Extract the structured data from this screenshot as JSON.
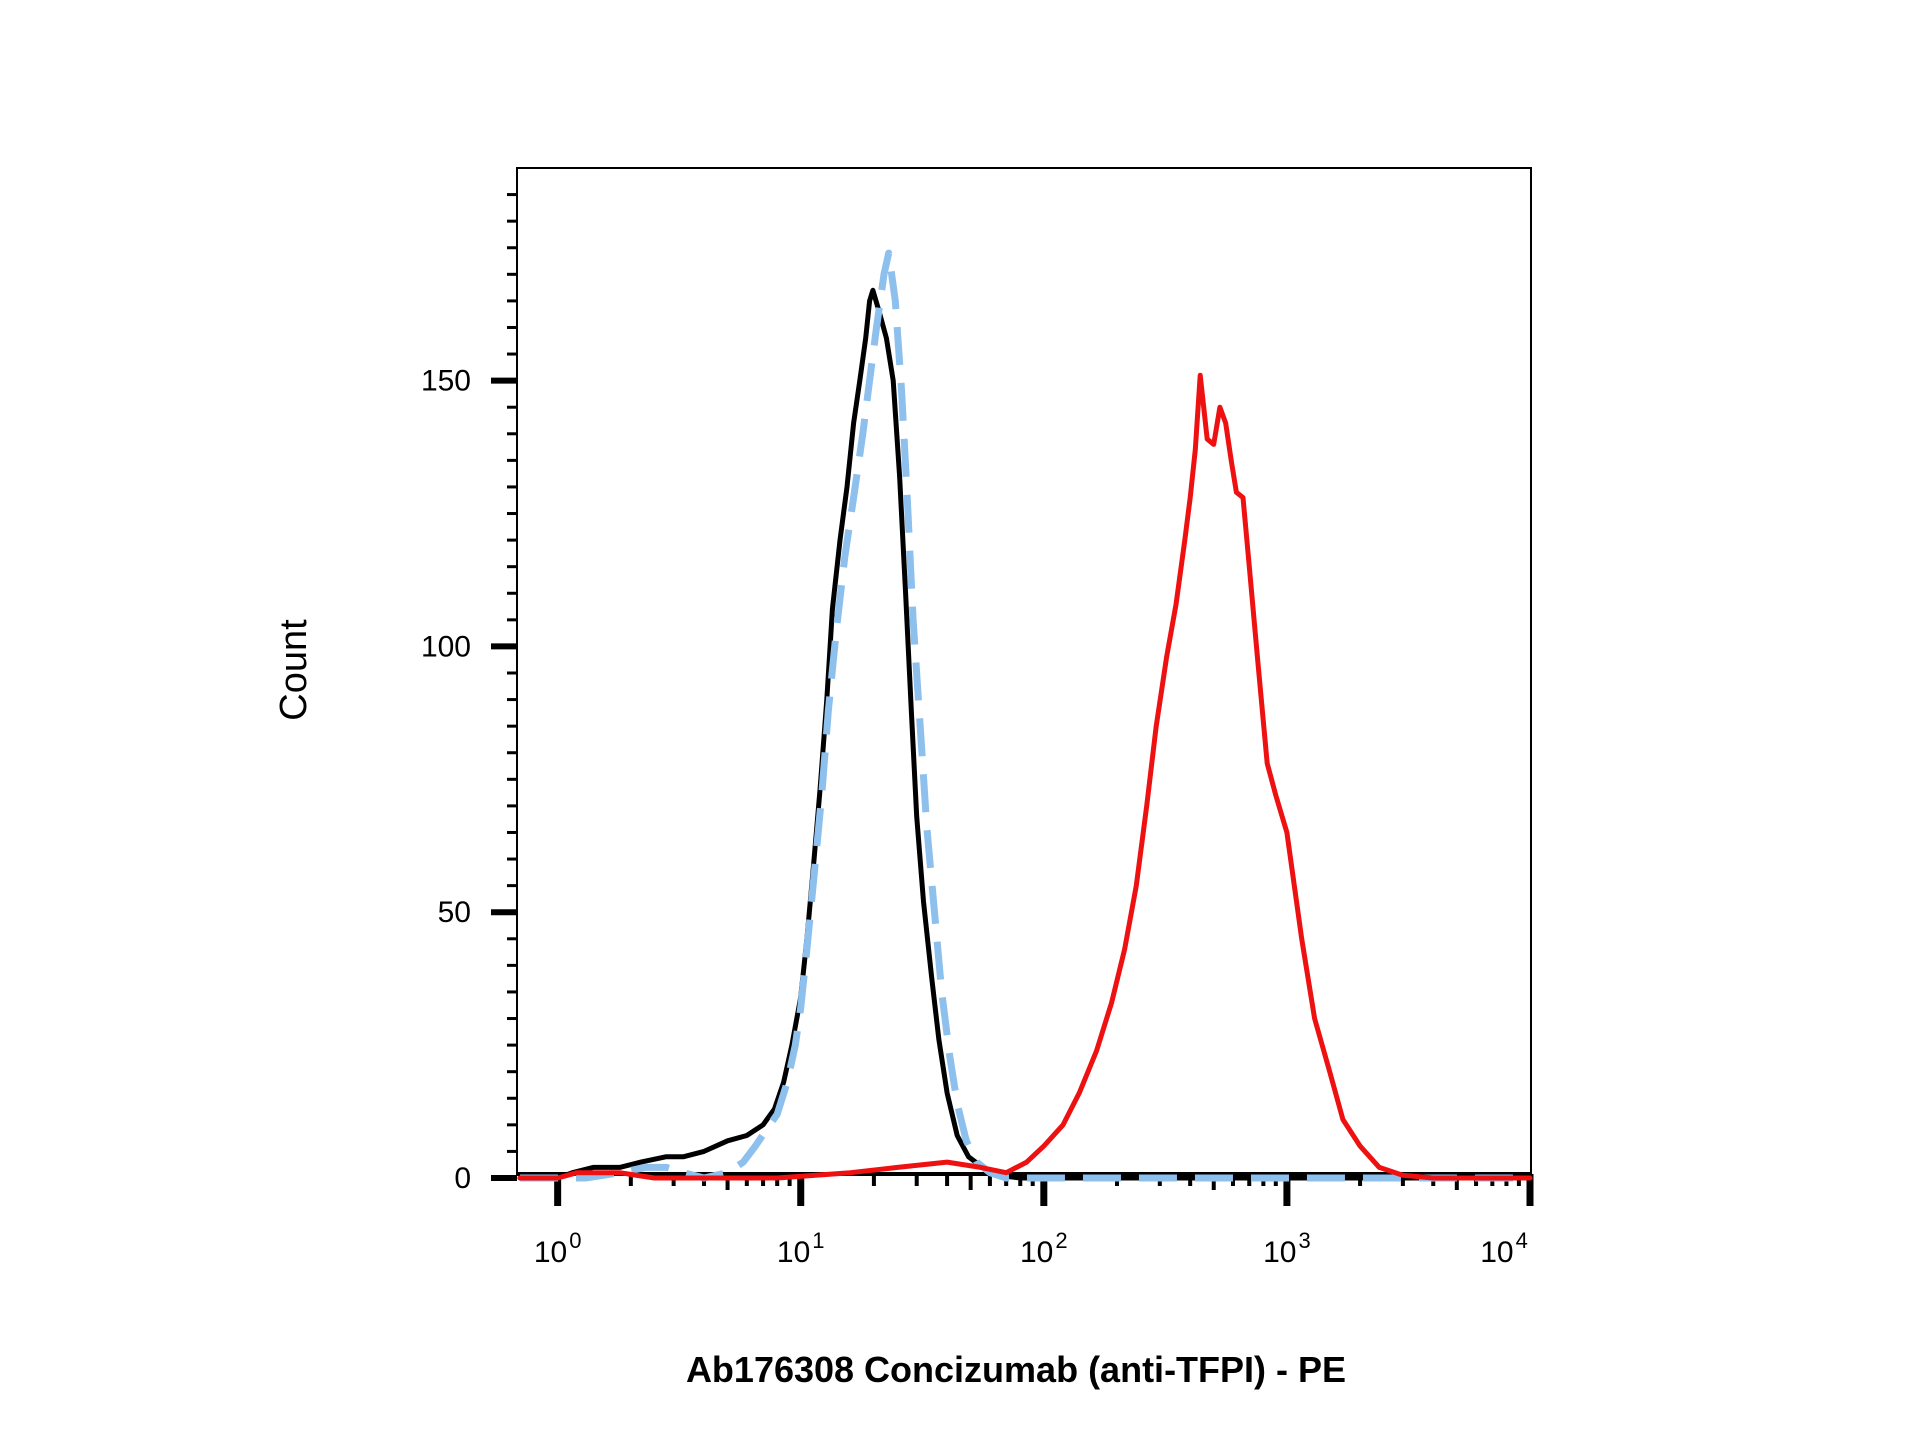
{
  "chart_data": {
    "type": "line",
    "title": "",
    "xlabel": "Ab176308 Concizumab (anti-TFPI) - PE",
    "ylabel": "Count",
    "x_scale": "log",
    "xlim": [
      0.7,
      10000
    ],
    "ylim": [
      0,
      190
    ],
    "x_ticks": [
      {
        "value": 1,
        "base": "10",
        "exp": "0"
      },
      {
        "value": 10,
        "base": "10",
        "exp": "1"
      },
      {
        "value": 100,
        "base": "10",
        "exp": "2"
      },
      {
        "value": 1000,
        "base": "10",
        "exp": "3"
      },
      {
        "value": 10000,
        "base": "10",
        "exp": "4"
      }
    ],
    "y_ticks": [
      0,
      50,
      100,
      150
    ],
    "y_tick_labels": [
      "0",
      "50",
      "100",
      "150"
    ],
    "grid": false,
    "legend": "none",
    "series": [
      {
        "color": "#000000",
        "style": "solid",
        "points": [
          [
            0.7,
            0
          ],
          [
            1.0,
            0
          ],
          [
            1.15,
            1
          ],
          [
            1.4,
            2
          ],
          [
            1.8,
            2
          ],
          [
            2.2,
            3
          ],
          [
            2.8,
            4
          ],
          [
            3.3,
            4
          ],
          [
            4.0,
            5
          ],
          [
            5.0,
            7
          ],
          [
            6.0,
            8
          ],
          [
            7.0,
            10
          ],
          [
            7.8,
            13
          ],
          [
            8.5,
            18
          ],
          [
            9.2,
            25
          ],
          [
            10.0,
            34
          ],
          [
            10.6,
            45
          ],
          [
            11.2,
            57
          ],
          [
            12.0,
            73
          ],
          [
            12.8,
            90
          ],
          [
            13.5,
            107
          ],
          [
            14.5,
            120
          ],
          [
            15.5,
            130
          ],
          [
            16.5,
            142
          ],
          [
            17.5,
            150
          ],
          [
            18.5,
            158
          ],
          [
            19.2,
            165
          ],
          [
            19.8,
            167
          ],
          [
            21.0,
            163
          ],
          [
            22.5,
            158
          ],
          [
            24.0,
            150
          ],
          [
            25.5,
            132
          ],
          [
            27.0,
            110
          ],
          [
            28.5,
            88
          ],
          [
            30.0,
            68
          ],
          [
            32.0,
            52
          ],
          [
            34.5,
            38
          ],
          [
            37.0,
            26
          ],
          [
            40.0,
            16
          ],
          [
            44.0,
            8
          ],
          [
            49.0,
            4
          ],
          [
            56.0,
            2
          ],
          [
            65.0,
            0.5
          ],
          [
            80.0,
            0
          ],
          [
            10000,
            0
          ]
        ]
      },
      {
        "color": "#8ec0ee",
        "style": "dashed",
        "points": [
          [
            0.7,
            0
          ],
          [
            1.0,
            0
          ],
          [
            1.3,
            0
          ],
          [
            1.8,
            1
          ],
          [
            2.3,
            2
          ],
          [
            2.8,
            2
          ],
          [
            3.3,
            1
          ],
          [
            4.0,
            0
          ],
          [
            5.0,
            1
          ],
          [
            5.8,
            3
          ],
          [
            6.5,
            6
          ],
          [
            7.2,
            9
          ],
          [
            8.0,
            12
          ],
          [
            8.8,
            18
          ],
          [
            9.5,
            25
          ],
          [
            10.0,
            32
          ],
          [
            10.6,
            43
          ],
          [
            11.3,
            56
          ],
          [
            12.2,
            72
          ],
          [
            13.0,
            88
          ],
          [
            14.0,
            103
          ],
          [
            15.2,
            117
          ],
          [
            16.5,
            128
          ],
          [
            18.0,
            140
          ],
          [
            19.2,
            150
          ],
          [
            20.5,
            160
          ],
          [
            22.0,
            170
          ],
          [
            23.0,
            174
          ],
          [
            24.5,
            165
          ],
          [
            26.0,
            148
          ],
          [
            27.5,
            127
          ],
          [
            29.0,
            105
          ],
          [
            31.0,
            85
          ],
          [
            33.0,
            66
          ],
          [
            35.5,
            50
          ],
          [
            38.0,
            35
          ],
          [
            41.0,
            23
          ],
          [
            44.0,
            14
          ],
          [
            48.0,
            7
          ],
          [
            53.0,
            3
          ],
          [
            60.0,
            1
          ],
          [
            70.0,
            0
          ],
          [
            10000,
            0
          ]
        ]
      },
      {
        "color": "#ee1111",
        "style": "solid",
        "points": [
          [
            0.7,
            0
          ],
          [
            1.0,
            0
          ],
          [
            1.2,
            1
          ],
          [
            1.8,
            1
          ],
          [
            2.5,
            0
          ],
          [
            4.0,
            0
          ],
          [
            8.0,
            0
          ],
          [
            16.0,
            1
          ],
          [
            25.0,
            2
          ],
          [
            40.0,
            3
          ],
          [
            55.0,
            2
          ],
          [
            70.0,
            1
          ],
          [
            85.0,
            3
          ],
          [
            100.0,
            6
          ],
          [
            120.0,
            10
          ],
          [
            140.0,
            16
          ],
          [
            165.0,
            24
          ],
          [
            190.0,
            33
          ],
          [
            215.0,
            43
          ],
          [
            240.0,
            55
          ],
          [
            265.0,
            70
          ],
          [
            290.0,
            85
          ],
          [
            320.0,
            98
          ],
          [
            350.0,
            108
          ],
          [
            380.0,
            120
          ],
          [
            400.0,
            128
          ],
          [
            420.0,
            137
          ],
          [
            440.0,
            151
          ],
          [
            470.0,
            139
          ],
          [
            500.0,
            138
          ],
          [
            530.0,
            145
          ],
          [
            560.0,
            142
          ],
          [
            590.0,
            135
          ],
          [
            620.0,
            129
          ],
          [
            660.0,
            128
          ],
          [
            700.0,
            115
          ],
          [
            760.0,
            97
          ],
          [
            830.0,
            78
          ],
          [
            900.0,
            72
          ],
          [
            1000.0,
            65
          ],
          [
            1150.0,
            45
          ],
          [
            1300.0,
            30
          ],
          [
            1500.0,
            20
          ],
          [
            1700.0,
            11
          ],
          [
            2000.0,
            6
          ],
          [
            2400.0,
            2
          ],
          [
            3000.0,
            0.5
          ],
          [
            4000.0,
            0
          ],
          [
            10000,
            0
          ]
        ]
      }
    ]
  }
}
